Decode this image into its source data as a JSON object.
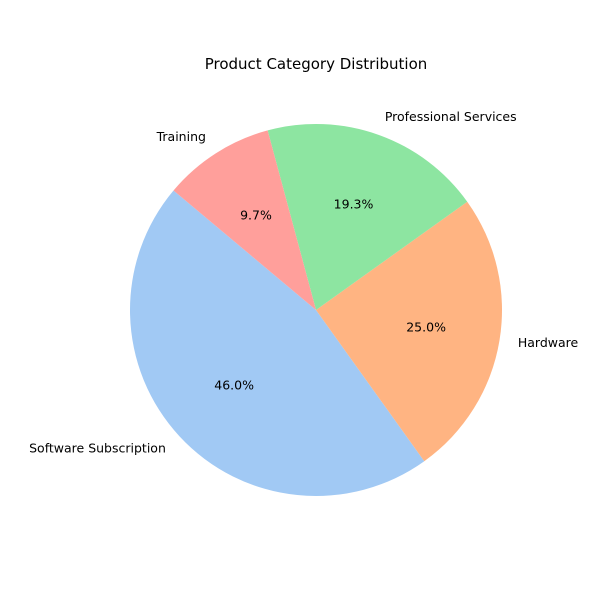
{
  "chart_data": {
    "type": "pie",
    "title": "Product Category Distribution",
    "categories": [
      "Software Subscription",
      "Hardware",
      "Professional Services",
      "Training"
    ],
    "values": [
      46.0,
      25.0,
      19.3,
      9.7
    ],
    "value_labels": [
      "46.0%",
      "25.0%",
      "19.3%",
      "9.7%"
    ],
    "colors": [
      "#a1c9f4",
      "#ffb482",
      "#8de5a1",
      "#ff9f9b"
    ],
    "start_angle_deg": 140,
    "direction": "counterclockwise",
    "legend": "none"
  }
}
